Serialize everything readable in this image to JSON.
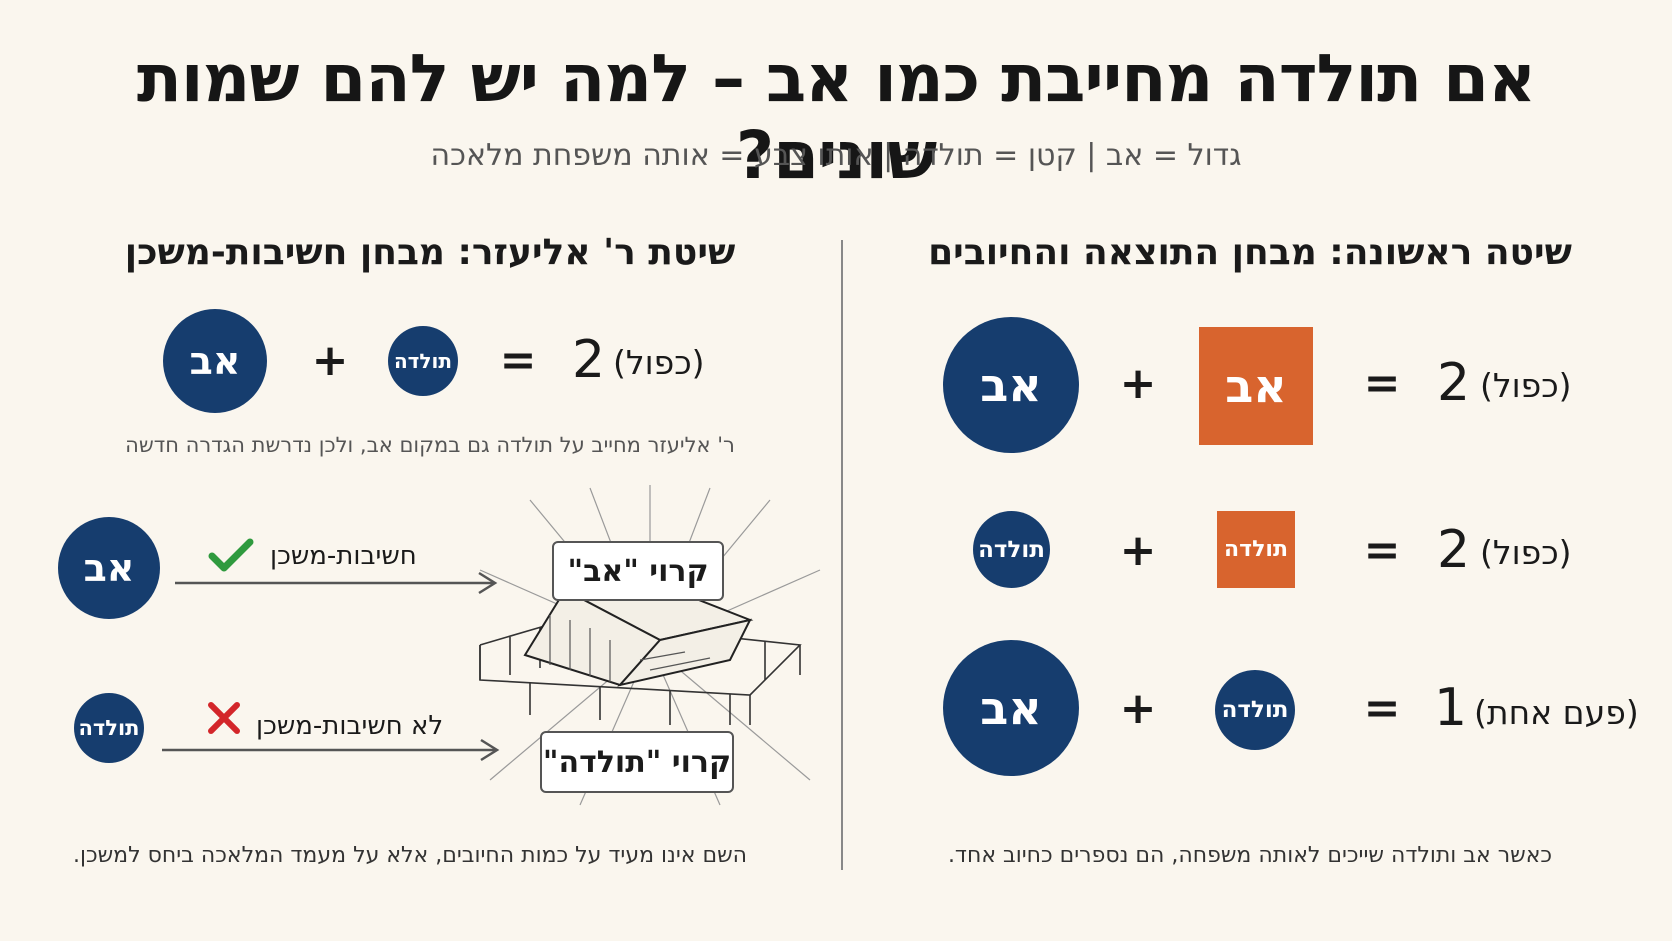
{
  "title": "אם תולדה מחייבת כמו אב – למה יש להם שמות שונים?",
  "subtitle": "גדול = אב  |  קטן = תולדה | אותו צבע = אותה משפחת מלאכה",
  "right": {
    "heading": "שיטה ראשונה: מבחן התוצאה והחיובים",
    "rows": [
      {
        "a": "אב",
        "op": "+",
        "b": "אב",
        "eq": "=",
        "num": "2",
        "note": "(כפול)"
      },
      {
        "a": "תולדה",
        "op": "+",
        "b": "תולדה",
        "eq": "=",
        "num": "2",
        "note": "(כפול)"
      },
      {
        "a": "אב",
        "op": "+",
        "b": "תולדה",
        "eq": "=",
        "num": "1",
        "note": "(פעם אחת)"
      }
    ],
    "caption": "כאשר אב ותולדה שייכים לאותה משפחה, הם נספרים כחיוב אחד."
  },
  "left": {
    "heading": "שיטת ר' אליעזר: מבחן חשיבות-משכן",
    "row": {
      "a": "אב",
      "op": "+",
      "b": "תולדה",
      "eq": "=",
      "num": "2",
      "note": "(כפול)"
    },
    "sub_caption": "ר' אליעזר מחייב על תולדה גם במקום אב, ולכן נדרשת הגדרה חדשה",
    "flow": [
      {
        "circle": "אב",
        "label": "חשיבות-משכן",
        "mark": "✓",
        "box": "קרוי \"אב\""
      },
      {
        "circle": "תולדה",
        "label": "לא חשיבות-משכן",
        "mark": "✗",
        "box": "קרוי \"תולדה\""
      }
    ],
    "caption": "השם אינו מעיד על כמות החיובים, אלא על מעמד המלאכה ביחס למשכן."
  },
  "colors": {
    "navy": "#163d6e",
    "orange": "#d8642e",
    "check": "#2f9a3e",
    "cross": "#d3262a"
  },
  "icons": {
    "check": "check-icon",
    "cross": "cross-icon",
    "tabernacle": "tabernacle-illustration",
    "arrow": "arrow-right-icon"
  }
}
